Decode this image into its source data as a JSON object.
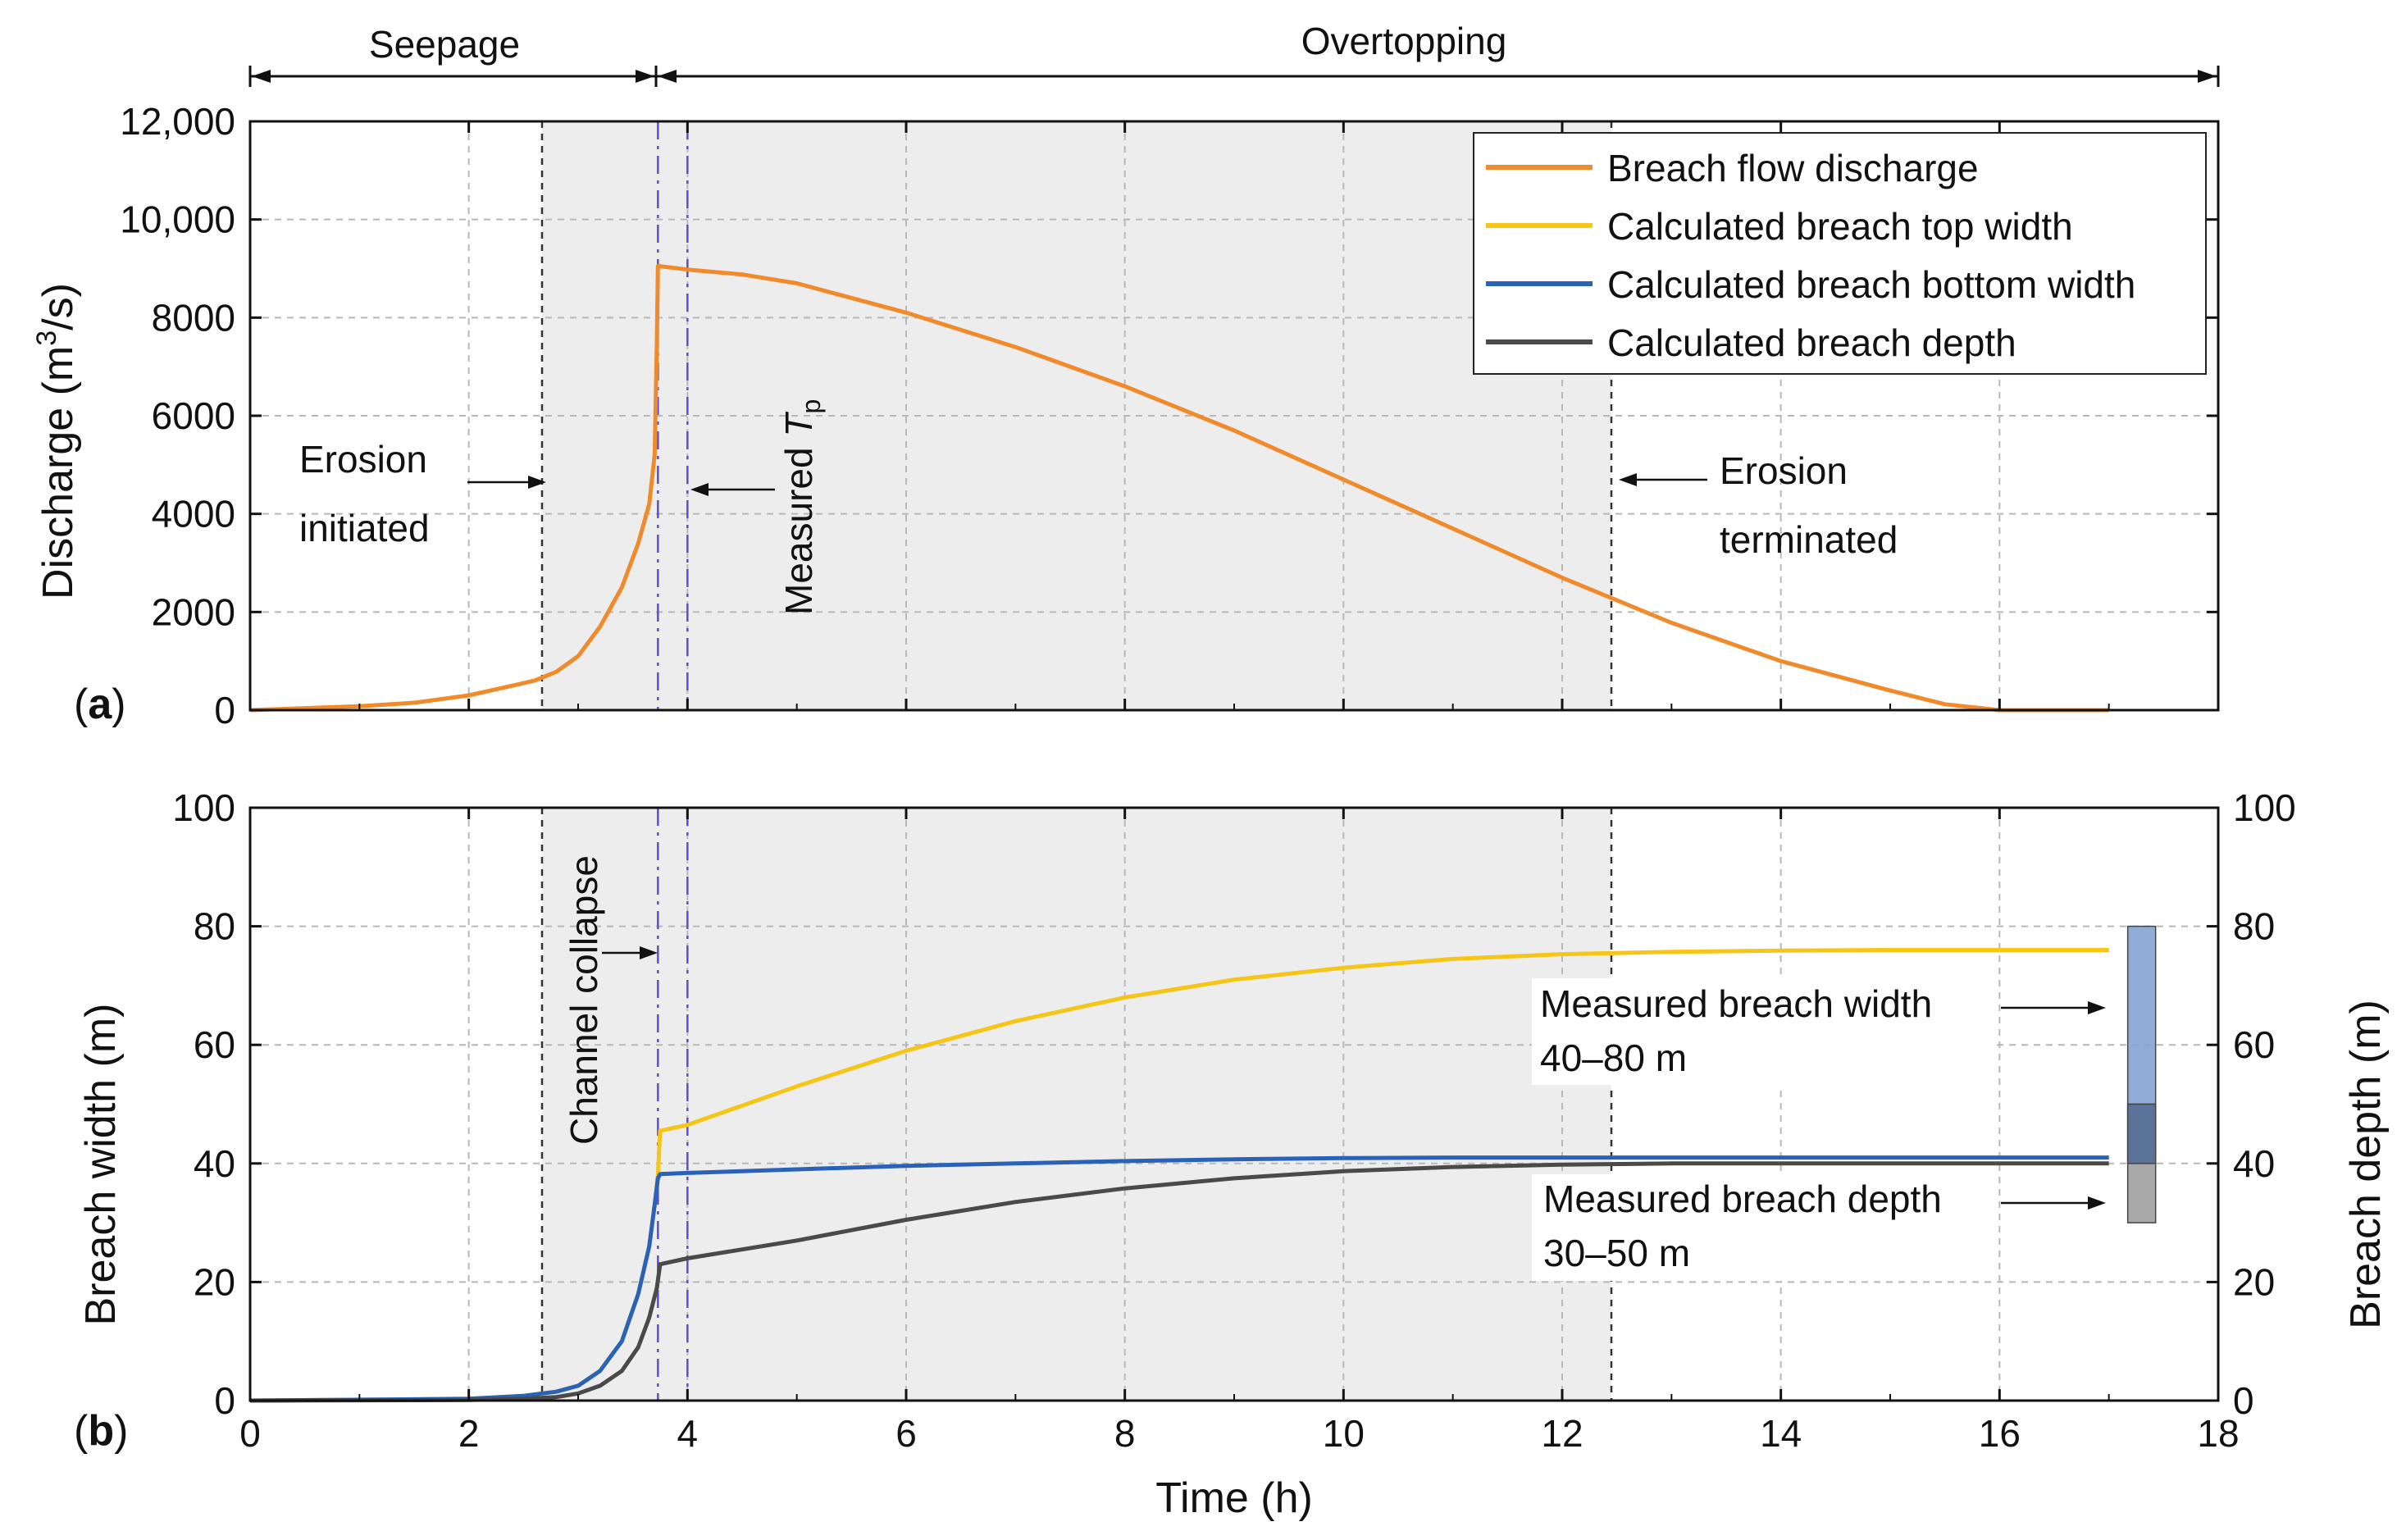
{
  "chart_data": [
    {
      "type": "line",
      "panel_label": "(a)",
      "xlabel": "",
      "ylabel": "Discharge (m3/s)",
      "ylabel_parts": [
        "Discharge (m",
        "3",
        "/s)"
      ],
      "xlim": [
        0,
        18
      ],
      "ylim": [
        0,
        12000
      ],
      "x_ticks": [
        0,
        2,
        4,
        6,
        8,
        10,
        12,
        14,
        16,
        18
      ],
      "y_ticks": [
        0,
        2000,
        4000,
        6000,
        8000,
        10000,
        12000
      ],
      "y_tick_labels": [
        "0",
        "2000",
        "4000",
        "6000",
        "8000",
        "10,000",
        "12,000"
      ],
      "grid": true,
      "legend_position": "top-right",
      "series": [
        {
          "name": "Breach flow discharge",
          "color": "#f08a2b",
          "x": [
            0,
            1,
            1.5,
            2,
            2.3,
            2.6,
            2.8,
            3.0,
            3.2,
            3.4,
            3.55,
            3.65,
            3.7,
            3.72,
            3.73,
            3.74,
            4.0,
            4.5,
            5.0,
            6.0,
            7.0,
            8.0,
            9.0,
            10.0,
            11.0,
            12.0,
            13.0,
            14.0,
            15.0,
            15.5,
            16.0,
            17.0
          ],
          "y": [
            0,
            80,
            150,
            300,
            450,
            600,
            780,
            1100,
            1700,
            2500,
            3400,
            4200,
            5200,
            7500,
            9050,
            9050,
            8980,
            8880,
            8700,
            8100,
            7400,
            6600,
            5700,
            4700,
            3700,
            2700,
            1780,
            1000,
            400,
            120,
            0,
            0
          ]
        }
      ],
      "phases": [
        {
          "label": "Seepage",
          "x_start": 0,
          "x_end": 3.73
        },
        {
          "label": "Overtopping",
          "x_start": 3.73,
          "x_end": 18
        }
      ],
      "shaded_region": {
        "x_start": 2.67,
        "x_end": 12.45,
        "color": "#ededed"
      },
      "annotations": [
        {
          "text_lines": [
            "Erosion",
            "initiated"
          ],
          "arrow_to_x": 2.67,
          "at_y": 4600
        },
        {
          "text_lines": [
            "Measured ",
            "T",
            "p"
          ],
          "arrow_to_x": 4.0,
          "at_y": 4500
        },
        {
          "text_lines": [
            "Erosion",
            "terminated"
          ],
          "arrow_to_x": 12.45,
          "at_y": 4800
        }
      ],
      "vertical_lines": [
        {
          "x": 2.67,
          "style": "dashed",
          "color": "#333333"
        },
        {
          "x": 3.73,
          "style": "dash-dot",
          "color": "#5b4fcf"
        },
        {
          "x": 4.0,
          "style": "dash-dot",
          "color": "#5b4fcf"
        },
        {
          "x": 12.45,
          "style": "dashed",
          "color": "#333333"
        }
      ]
    },
    {
      "type": "line",
      "panel_label": "(b)",
      "xlabel": "Time (h)",
      "ylabel": "Breach width (m)",
      "ylabel_right": "Breach depth (m)",
      "xlim": [
        0,
        18
      ],
      "ylim": [
        0,
        100
      ],
      "ylim_right": [
        0,
        100
      ],
      "x_ticks": [
        0,
        2,
        4,
        6,
        8,
        10,
        12,
        14,
        16,
        18
      ],
      "y_ticks": [
        0,
        20,
        40,
        60,
        80,
        100
      ],
      "grid": true,
      "series": [
        {
          "name": "Calculated breach top width",
          "color": "#f5c518",
          "x": [
            0,
            2,
            2.5,
            2.8,
            3.0,
            3.2,
            3.4,
            3.55,
            3.65,
            3.7,
            3.73,
            3.75,
            4.0,
            5.0,
            6.0,
            7.0,
            8.0,
            9.0,
            10.0,
            11.0,
            12.0,
            13.0,
            14.0,
            15.0,
            16.0,
            17.0
          ],
          "y": [
            0,
            0.3,
            0.8,
            1.5,
            2.5,
            5,
            10,
            18,
            26,
            33,
            38,
            45.5,
            46.5,
            53,
            59,
            64,
            68,
            71,
            73,
            74.5,
            75.3,
            75.7,
            75.9,
            76,
            76,
            76
          ]
        },
        {
          "name": "Calculated breach bottom width",
          "color": "#2a62b8",
          "x": [
            0,
            2,
            2.5,
            2.8,
            3.0,
            3.2,
            3.4,
            3.55,
            3.65,
            3.7,
            3.73,
            3.75,
            4.0,
            5.0,
            6.0,
            7.0,
            8.0,
            9.0,
            10.0,
            11.0,
            12.0,
            13.0,
            14.0,
            15.0,
            16.0,
            17.0
          ],
          "y": [
            0,
            0.3,
            0.8,
            1.5,
            2.5,
            5,
            10,
            18,
            26,
            33,
            37.5,
            38.2,
            38.4,
            39.0,
            39.6,
            40.0,
            40.4,
            40.7,
            40.9,
            41.0,
            41.0,
            41.0,
            41.0,
            41.0,
            41.0,
            41.0
          ]
        },
        {
          "name": "Calculated breach depth",
          "color": "#4a4a4a",
          "x": [
            0,
            2,
            2.5,
            2.8,
            3.0,
            3.2,
            3.4,
            3.55,
            3.65,
            3.72,
            3.75,
            4.0,
            5.0,
            6.0,
            7.0,
            8.0,
            9.0,
            10.0,
            11.0,
            12.0,
            13.0,
            14.0,
            15.0,
            16.0,
            17.0
          ],
          "y": [
            0,
            0.1,
            0.3,
            0.6,
            1.2,
            2.5,
            5,
            9,
            14,
            19,
            23,
            24,
            27,
            30.5,
            33.5,
            35.8,
            37.5,
            38.7,
            39.4,
            39.8,
            40,
            40,
            40,
            40,
            40
          ]
        }
      ],
      "measured_ranges": [
        {
          "label_lines": [
            "Measured breach width",
            "40–80 m"
          ],
          "x": 17.3,
          "range": [
            40,
            80
          ],
          "color": "#7d9fd1"
        },
        {
          "label_lines": [
            "Measured breach depth",
            "30–50 m"
          ],
          "x": 17.3,
          "range": [
            30,
            50
          ],
          "color": "#9a9a9a"
        }
      ],
      "annotations": [
        {
          "text": "Channel collapse",
          "arrow_to_x": 3.73,
          "at_y": 76
        }
      ]
    }
  ]
}
